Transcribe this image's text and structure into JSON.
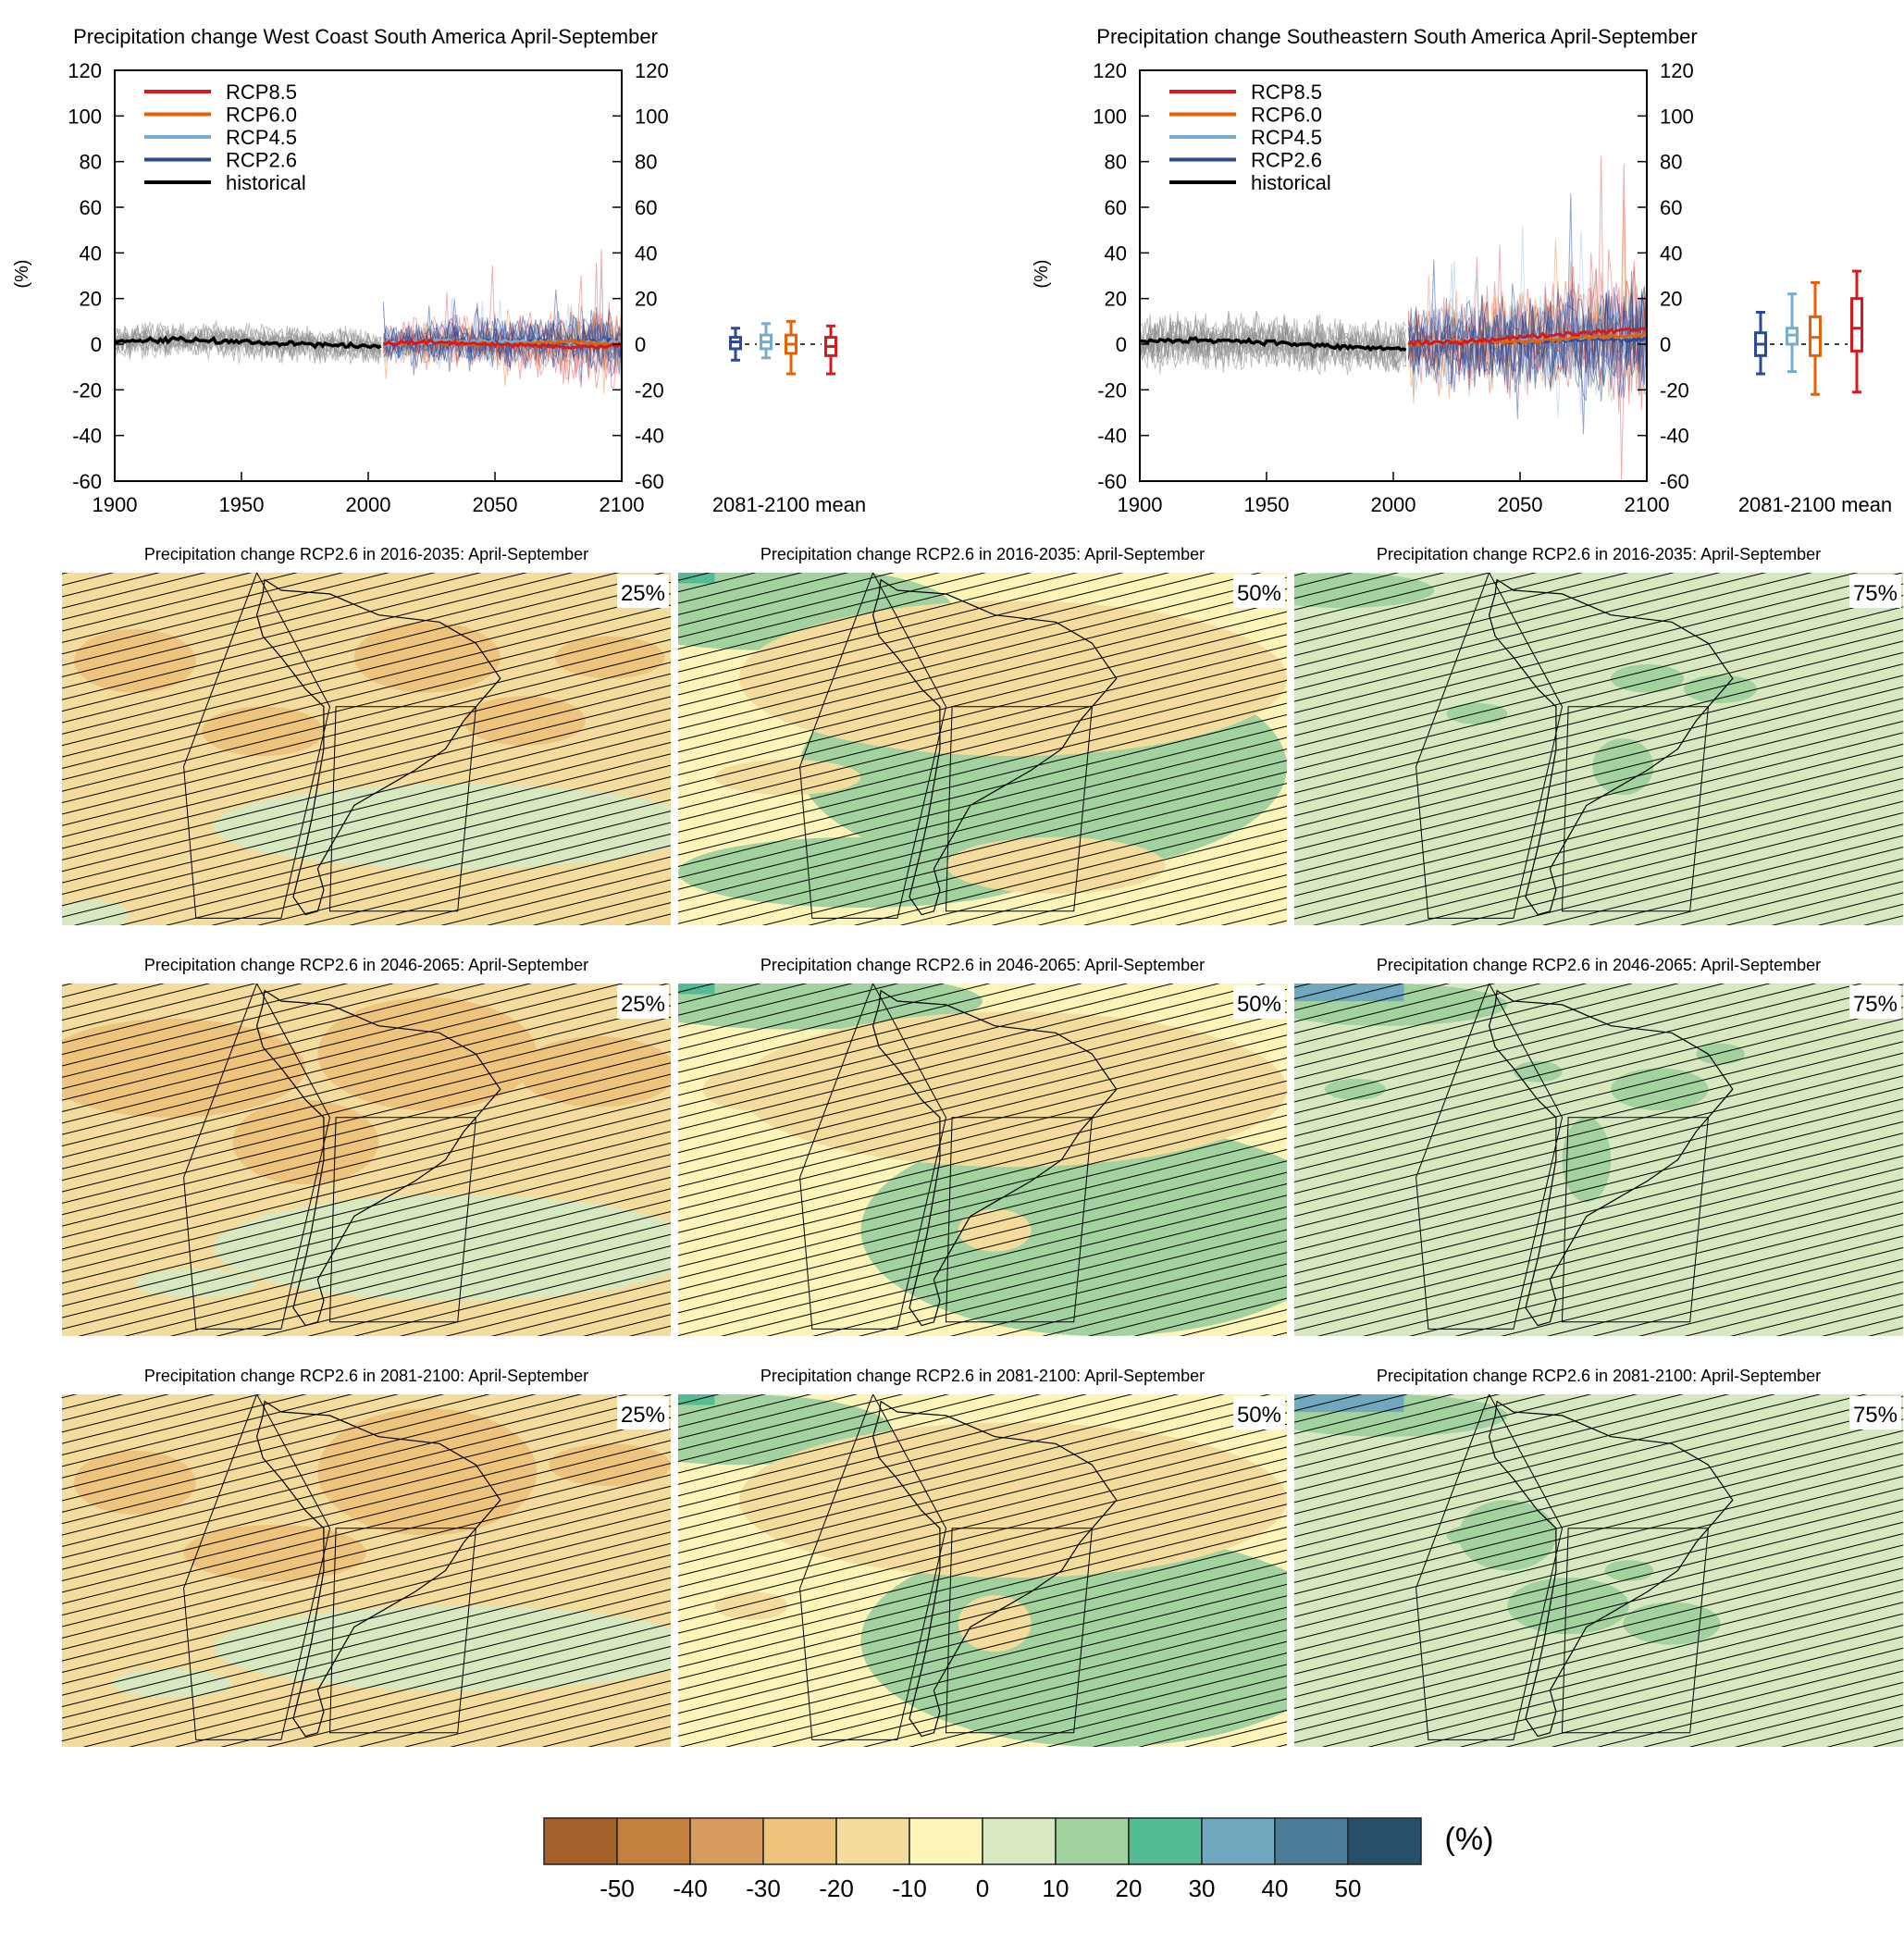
{
  "time_series": [
    {
      "title": "Precipitation change West Coast South America April-September",
      "ylabel": "(%)",
      "x_ticks": [
        "1900",
        "1950",
        "2000",
        "2050",
        "2100"
      ],
      "y_ticks": [
        "120",
        "100",
        "80",
        "60",
        "40",
        "20",
        "0",
        "-20",
        "-40",
        "-60"
      ],
      "box_label": "2081-2100 mean"
    },
    {
      "title": "Precipitation change Southeastern South America April-September",
      "ylabel": "(%)",
      "x_ticks": [
        "1900",
        "1950",
        "2000",
        "2050",
        "2100"
      ],
      "y_ticks": [
        "120",
        "100",
        "80",
        "60",
        "40",
        "20",
        "0",
        "-20",
        "-40",
        "-60"
      ],
      "box_label": "2081-2100 mean"
    }
  ],
  "legend": [
    {
      "label": "RCP8.5",
      "color": "#d7191c"
    },
    {
      "label": "RCP6.0",
      "color": "#e66101"
    },
    {
      "label": "RCP4.5",
      "color": "#74add1"
    },
    {
      "label": "RCP2.6",
      "color": "#2c4a9a"
    },
    {
      "label": "historical",
      "color": "#000000"
    }
  ],
  "maps": {
    "rows": [
      {
        "title": "Precipitation change RCP2.6 in 2016-2035: April-September"
      },
      {
        "title": "Precipitation change RCP2.6 in 2046-2065: April-September"
      },
      {
        "title": "Precipitation change RCP2.6 in 2081-2100: April-September"
      }
    ],
    "percentiles": [
      "25%",
      "50%",
      "75%"
    ]
  },
  "colorbar": {
    "unit": "(%)",
    "tick_labels": [
      "-50",
      "-40",
      "-30",
      "-20",
      "-10",
      "0",
      "10",
      "20",
      "30",
      "40",
      "50"
    ],
    "colors": [
      "#a6612a",
      "#c27f3e",
      "#d89b5e",
      "#eec37c",
      "#f4dc9c",
      "#fdf5b8",
      "#d8e8c0",
      "#a1d29f",
      "#52bc95",
      "#6fa8bf",
      "#4b7d99",
      "#284f6a"
    ]
  },
  "chart_data": [
    {
      "type": "line",
      "title": "Precipitation change West Coast South America April-September",
      "ylabel": "(%)",
      "xlim": [
        1900,
        2100
      ],
      "ylim": [
        -60,
        120
      ],
      "x": [
        1900,
        1925,
        1950,
        1975,
        2000,
        2025,
        2050,
        2075,
        2100
      ],
      "series": [
        {
          "name": "historical",
          "values": [
            1,
            2,
            1,
            0,
            -1,
            null,
            null,
            null,
            null
          ]
        },
        {
          "name": "RCP2.6",
          "values": [
            null,
            null,
            null,
            null,
            0,
            1,
            1,
            1,
            1
          ]
        },
        {
          "name": "RCP4.5",
          "values": [
            null,
            null,
            null,
            null,
            0,
            1,
            1,
            1,
            1
          ]
        },
        {
          "name": "RCP6.0",
          "values": [
            null,
            null,
            null,
            null,
            0,
            1,
            0,
            1,
            0
          ]
        },
        {
          "name": "RCP8.5",
          "values": [
            null,
            null,
            null,
            null,
            0,
            1,
            0,
            -1,
            -1
          ]
        }
      ],
      "boxplots_2081_2100": [
        {
          "name": "RCP2.6",
          "min": -7,
          "q1": -2,
          "median": 1,
          "q3": 3,
          "max": 7
        },
        {
          "name": "RCP4.5",
          "min": -6,
          "q1": -2,
          "median": 1,
          "q3": 4,
          "max": 9
        },
        {
          "name": "RCP6.0",
          "min": -13,
          "q1": -4,
          "median": 0,
          "q3": 4,
          "max": 10
        },
        {
          "name": "RCP8.5",
          "min": -13,
          "q1": -5,
          "median": -1,
          "q3": 3,
          "max": 8
        }
      ]
    },
    {
      "type": "line",
      "title": "Precipitation change Southeastern South America April-September",
      "ylabel": "(%)",
      "xlim": [
        1900,
        2100
      ],
      "ylim": [
        -60,
        120
      ],
      "x": [
        1900,
        1925,
        1950,
        1975,
        2000,
        2025,
        2050,
        2075,
        2100
      ],
      "series": [
        {
          "name": "historical",
          "values": [
            1,
            2,
            1,
            -1,
            -2,
            null,
            null,
            null,
            null
          ]
        },
        {
          "name": "RCP2.6",
          "values": [
            null,
            null,
            null,
            null,
            0,
            1,
            1,
            2,
            2
          ]
        },
        {
          "name": "RCP4.5",
          "values": [
            null,
            null,
            null,
            null,
            0,
            1,
            2,
            3,
            4
          ]
        },
        {
          "name": "RCP6.0",
          "values": [
            null,
            null,
            null,
            null,
            0,
            1,
            1,
            3,
            4
          ]
        },
        {
          "name": "RCP8.5",
          "values": [
            null,
            null,
            null,
            null,
            0,
            1,
            3,
            5,
            7
          ]
        }
      ],
      "boxplots_2081_2100": [
        {
          "name": "RCP2.6",
          "min": -13,
          "q1": -5,
          "median": 0,
          "q3": 5,
          "max": 14
        },
        {
          "name": "RCP4.5",
          "min": -12,
          "q1": 0,
          "median": 4,
          "q3": 7,
          "max": 22
        },
        {
          "name": "RCP6.0",
          "min": -22,
          "q1": -5,
          "median": 3,
          "q3": 12,
          "max": 27
        },
        {
          "name": "RCP8.5",
          "min": -21,
          "q1": -3,
          "median": 7,
          "q3": 20,
          "max": 32
        }
      ]
    }
  ]
}
